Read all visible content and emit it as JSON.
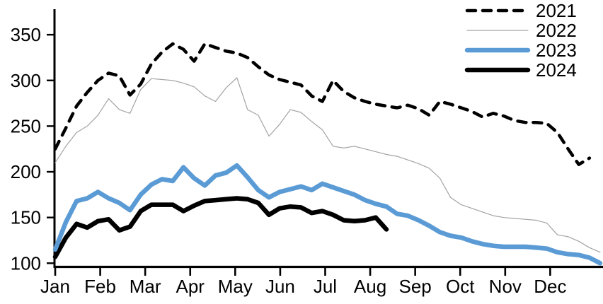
{
  "chart_data": {
    "type": "line",
    "title": "",
    "sampling": "weekly",
    "legend_position": "top-right",
    "grid": false,
    "x_axis": {
      "categories": [
        "Jan",
        "Feb",
        "Mar",
        "Apr",
        "May",
        "Jun",
        "Jul",
        "Aug",
        "Sep",
        "Oct",
        "Nov",
        "Dec"
      ]
    },
    "y_axis": {
      "ticks": [
        350,
        300,
        250,
        200,
        150,
        100
      ],
      "range": [
        100,
        350
      ]
    },
    "series": [
      {
        "name": "2021",
        "color": "#000000",
        "line_style": "dashed",
        "line_width": 4.5,
        "values": [
          225,
          248,
          272,
          287,
          300,
          308,
          305,
          284,
          296,
          318,
          331,
          340,
          334,
          321,
          340,
          336,
          332,
          330,
          325,
          315,
          306,
          301,
          298,
          295,
          283,
          277,
          300,
          288,
          281,
          277,
          274,
          272,
          270,
          273,
          269,
          262,
          277,
          274,
          270,
          266,
          260,
          264,
          261,
          256,
          254,
          254,
          253,
          243,
          225,
          208,
          215
        ]
      },
      {
        "name": "2022",
        "color": "#a3a3a3",
        "line_style": "solid",
        "line_width": 1.2,
        "values": [
          210,
          228,
          243,
          250,
          262,
          280,
          268,
          264,
          290,
          302,
          301,
          300,
          297,
          293,
          283,
          277,
          292,
          303,
          268,
          262,
          239,
          252,
          268,
          265,
          255,
          246,
          228,
          226,
          228,
          225,
          222,
          219,
          217,
          213,
          209,
          204,
          193,
          172,
          164,
          160,
          156,
          152,
          150,
          149,
          148,
          147,
          144,
          131,
          129,
          124,
          117,
          112
        ]
      },
      {
        "name": "2023",
        "color": "#5b9bd5",
        "line_style": "solid",
        "line_width": 6.5,
        "values": [
          115,
          145,
          168,
          171,
          178,
          171,
          166,
          158,
          175,
          186,
          192,
          190,
          205,
          193,
          185,
          196,
          199,
          207,
          194,
          180,
          172,
          178,
          181,
          184,
          180,
          187,
          183,
          179,
          175,
          169,
          165,
          162,
          154,
          152,
          147,
          141,
          134,
          130,
          128,
          124,
          121,
          119,
          118,
          118,
          118,
          117,
          116,
          112,
          110,
          109,
          106,
          100
        ]
      },
      {
        "name": "2024",
        "color": "#000000",
        "line_style": "solid",
        "line_width": 6.5,
        "values": [
          107,
          128,
          143,
          139,
          146,
          148,
          136,
          140,
          157,
          164,
          164,
          164,
          157,
          163,
          168,
          169,
          170,
          171,
          170,
          166,
          153,
          160,
          162,
          161,
          155,
          157,
          153,
          147,
          146,
          147,
          150,
          137
        ]
      }
    ]
  }
}
